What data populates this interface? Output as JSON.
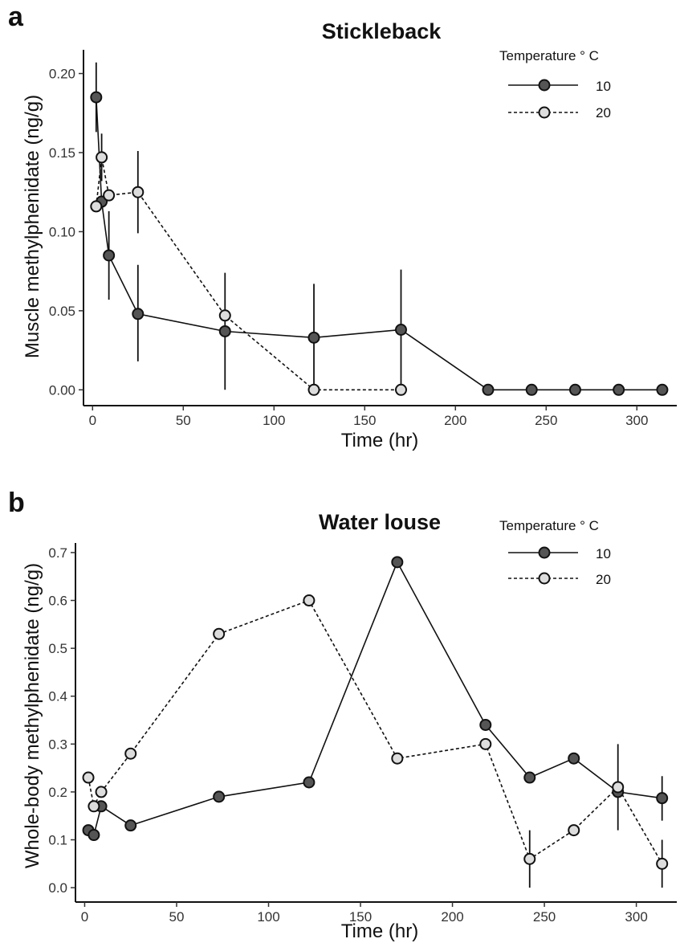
{
  "chart_data": [
    {
      "type": "line",
      "panel_label": "a",
      "title": "Stickleback",
      "xlabel": "Time (hr)",
      "ylabel": "Muscle methylphenidate (ng/g)",
      "xlim": [
        -5,
        322
      ],
      "ylim": [
        -0.01,
        0.215
      ],
      "x_ticks": [
        0,
        50,
        100,
        150,
        200,
        250,
        300
      ],
      "y_ticks": [
        0.0,
        0.05,
        0.1,
        0.15,
        0.2
      ],
      "y_tick_labels": [
        "0.00",
        "0.05",
        "0.10",
        "0.15",
        "0.20"
      ],
      "x_tick_labels": [
        "0",
        "50",
        "100",
        "150",
        "200",
        "250",
        "300"
      ],
      "grid": false,
      "legend": {
        "title": "Temperature ° C",
        "position": "top-right"
      },
      "series": [
        {
          "name": "10",
          "line_style": "solid",
          "marker_fill": "#555555",
          "points": [
            {
              "x": 2,
              "y": 0.185,
              "err": [
                0.163,
                0.207
              ]
            },
            {
              "x": 5,
              "y": 0.119
            },
            {
              "x": 9,
              "y": 0.085,
              "err": [
                0.057,
                0.113
              ]
            },
            {
              "x": 25,
              "y": 0.048,
              "err": [
                0.018,
                0.079
              ]
            },
            {
              "x": 73,
              "y": 0.037,
              "err": [
                0.0,
                0.074
              ]
            },
            {
              "x": 122,
              "y": 0.033,
              "err": [
                0.0,
                0.067
              ]
            },
            {
              "x": 170,
              "y": 0.038,
              "err": [
                0.0,
                0.076
              ]
            },
            {
              "x": 218,
              "y": 0.0
            },
            {
              "x": 242,
              "y": 0.0
            },
            {
              "x": 266,
              "y": 0.0
            },
            {
              "x": 290,
              "y": 0.0
            },
            {
              "x": 314,
              "y": 0.0
            }
          ]
        },
        {
          "name": "20",
          "line_style": "dashed",
          "marker_fill": "#dddddd",
          "points": [
            {
              "x": 2,
              "y": 0.116
            },
            {
              "x": 5,
              "y": 0.147,
              "err": [
                0.132,
                0.162
              ]
            },
            {
              "x": 9,
              "y": 0.123
            },
            {
              "x": 25,
              "y": 0.125,
              "err": [
                0.099,
                0.151
              ]
            },
            {
              "x": 73,
              "y": 0.047
            },
            {
              "x": 122,
              "y": 0.0
            },
            {
              "x": 170,
              "y": 0.0
            }
          ]
        }
      ]
    },
    {
      "type": "line",
      "panel_label": "b",
      "title": "Water louse",
      "xlabel": "Time (hr)",
      "ylabel": "Whole-body methylphenidate (ng/g)",
      "xlim": [
        -5,
        322
      ],
      "ylim": [
        -0.03,
        0.72
      ],
      "x_ticks": [
        0,
        50,
        100,
        150,
        200,
        250,
        300
      ],
      "y_ticks": [
        0.0,
        0.1,
        0.2,
        0.3,
        0.4,
        0.5,
        0.6,
        0.7
      ],
      "y_tick_labels": [
        "0.0",
        "0.1",
        "0.2",
        "0.3",
        "0.4",
        "0.5",
        "0.6",
        "0.7"
      ],
      "x_tick_labels": [
        "0",
        "50",
        "100",
        "150",
        "200",
        "250",
        "300"
      ],
      "grid": false,
      "legend": {
        "title": "Temperature ° C",
        "position": "top-right"
      },
      "series": [
        {
          "name": "10",
          "line_style": "solid",
          "marker_fill": "#555555",
          "points": [
            {
              "x": 2,
              "y": 0.12
            },
            {
              "x": 5,
              "y": 0.11
            },
            {
              "x": 9,
              "y": 0.17
            },
            {
              "x": 25,
              "y": 0.13
            },
            {
              "x": 73,
              "y": 0.19
            },
            {
              "x": 122,
              "y": 0.22
            },
            {
              "x": 170,
              "y": 0.68
            },
            {
              "x": 218,
              "y": 0.34
            },
            {
              "x": 242,
              "y": 0.23
            },
            {
              "x": 266,
              "y": 0.27
            },
            {
              "x": 290,
              "y": 0.2,
              "err": [
                0.12,
                0.3
              ]
            },
            {
              "x": 314,
              "y": 0.187,
              "err": [
                0.14,
                0.233
              ]
            }
          ]
        },
        {
          "name": "20",
          "line_style": "dashed",
          "marker_fill": "#dddddd",
          "points": [
            {
              "x": 2,
              "y": 0.23
            },
            {
              "x": 5,
              "y": 0.17
            },
            {
              "x": 9,
              "y": 0.2
            },
            {
              "x": 25,
              "y": 0.28
            },
            {
              "x": 73,
              "y": 0.53
            },
            {
              "x": 122,
              "y": 0.6
            },
            {
              "x": 170,
              "y": 0.27
            },
            {
              "x": 218,
              "y": 0.3
            },
            {
              "x": 242,
              "y": 0.06,
              "err": [
                0.0,
                0.12
              ]
            },
            {
              "x": 266,
              "y": 0.12
            },
            {
              "x": 290,
              "y": 0.21
            },
            {
              "x": 314,
              "y": 0.05,
              "err": [
                0.0,
                0.1
              ]
            }
          ]
        }
      ]
    }
  ]
}
